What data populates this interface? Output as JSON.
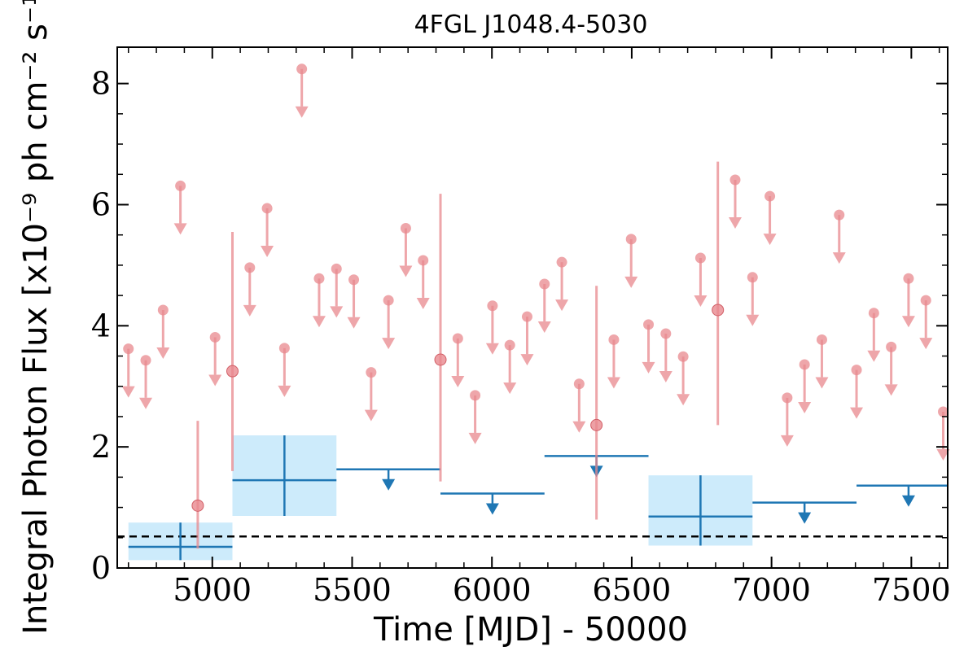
{
  "chart_data": {
    "type": "scatter",
    "title": "4FGL J1048.4-5030",
    "xlabel": "Time [MJD] - 50000",
    "ylabel": "Integral Photon Flux [x10⁻⁹ ph cm⁻² s⁻¹]",
    "xlim": [
      4660,
      7630
    ],
    "ylim": [
      0,
      8.6
    ],
    "x_ticks": [
      5000,
      5500,
      6000,
      6500,
      7000,
      7500
    ],
    "y_ticks": [
      0,
      2,
      4,
      6,
      8
    ],
    "grid": false,
    "colors": {
      "short_bins": "#e8888e",
      "long_bins": "#1f77b4",
      "long_band": "#cdebfb",
      "reference_line": "#000000"
    },
    "reference_line_y": 0.52,
    "short_bins": {
      "upper_limits": [
        {
          "x": 4700,
          "y": 3.62
        },
        {
          "x": 4762,
          "y": 3.43
        },
        {
          "x": 4824,
          "y": 4.26
        },
        {
          "x": 4886,
          "y": 6.31
        },
        {
          "x": 5010,
          "y": 3.81
        },
        {
          "x": 5134,
          "y": 4.96
        },
        {
          "x": 5196,
          "y": 5.94
        },
        {
          "x": 5258,
          "y": 3.63
        },
        {
          "x": 5320,
          "y": 8.24
        },
        {
          "x": 5382,
          "y": 4.78
        },
        {
          "x": 5444,
          "y": 4.94
        },
        {
          "x": 5506,
          "y": 4.76
        },
        {
          "x": 5568,
          "y": 3.23
        },
        {
          "x": 5630,
          "y": 4.42
        },
        {
          "x": 5692,
          "y": 5.61
        },
        {
          "x": 5754,
          "y": 5.08
        },
        {
          "x": 5878,
          "y": 3.79
        },
        {
          "x": 5940,
          "y": 2.85
        },
        {
          "x": 6002,
          "y": 4.33
        },
        {
          "x": 6064,
          "y": 3.68
        },
        {
          "x": 6126,
          "y": 4.15
        },
        {
          "x": 6188,
          "y": 4.69
        },
        {
          "x": 6250,
          "y": 5.05
        },
        {
          "x": 6312,
          "y": 3.04
        },
        {
          "x": 6436,
          "y": 3.77
        },
        {
          "x": 6498,
          "y": 5.43
        },
        {
          "x": 6560,
          "y": 4.02
        },
        {
          "x": 6622,
          "y": 3.87
        },
        {
          "x": 6684,
          "y": 3.49
        },
        {
          "x": 6746,
          "y": 5.12
        },
        {
          "x": 6870,
          "y": 6.41
        },
        {
          "x": 6932,
          "y": 4.8
        },
        {
          "x": 6994,
          "y": 6.14
        },
        {
          "x": 7056,
          "y": 2.81
        },
        {
          "x": 7118,
          "y": 3.36
        },
        {
          "x": 7180,
          "y": 3.77
        },
        {
          "x": 7242,
          "y": 5.83
        },
        {
          "x": 7304,
          "y": 3.27
        },
        {
          "x": 7366,
          "y": 4.21
        },
        {
          "x": 7428,
          "y": 3.65
        },
        {
          "x": 7490,
          "y": 4.78
        },
        {
          "x": 7552,
          "y": 4.42
        },
        {
          "x": 7614,
          "y": 2.58
        }
      ],
      "detections": [
        {
          "x": 4948,
          "y": 1.03,
          "y_low": 0.32,
          "y_high": 2.43
        },
        {
          "x": 5072,
          "y": 3.25,
          "y_low": 1.6,
          "y_high": 5.55
        },
        {
          "x": 5816,
          "y": 3.44,
          "y_low": 1.43,
          "y_high": 6.18
        },
        {
          "x": 6374,
          "y": 2.36,
          "y_low": 0.8,
          "y_high": 4.66
        },
        {
          "x": 6808,
          "y": 4.26,
          "y_low": 2.36,
          "y_high": 6.71
        }
      ]
    },
    "long_bins": {
      "detections": [
        {
          "x_start": 4700,
          "x_end": 5072,
          "x": 4886,
          "y": 0.35,
          "y_low": 0.13,
          "y_high": 0.75
        },
        {
          "x_start": 5072,
          "x_end": 5444,
          "x": 5258,
          "y": 1.45,
          "y_low": 0.86,
          "y_high": 2.19
        },
        {
          "x_start": 6560,
          "x_end": 6932,
          "x": 6746,
          "y": 0.85,
          "y_low": 0.37,
          "y_high": 1.53
        }
      ],
      "upper_limits": [
        {
          "x_start": 5444,
          "x_end": 5816,
          "x": 5630,
          "y": 1.63
        },
        {
          "x_start": 5816,
          "x_end": 6188,
          "x": 6002,
          "y": 1.23
        },
        {
          "x_start": 6188,
          "x_end": 6560,
          "x": 6374,
          "y": 1.85
        },
        {
          "x_start": 6932,
          "x_end": 7304,
          "x": 7118,
          "y": 1.08
        },
        {
          "x_start": 7304,
          "x_end": 7676,
          "x": 7490,
          "y": 1.36
        }
      ]
    }
  }
}
